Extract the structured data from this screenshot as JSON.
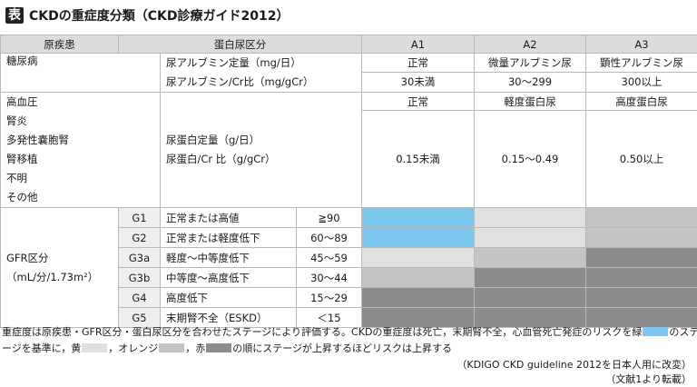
{
  "title": {
    "badge": "表",
    "text": "CKDの重症度分類（CKD診療ガイド2012）"
  },
  "colors": {
    "header_bg": "#dcdcdc",
    "grade_bg": "#eeeeee",
    "green": "#7ec8f0",
    "yellow": "#e0e0e0",
    "orange": "#c4c4c4",
    "red": "#8c8c8c"
  },
  "table": {
    "header": {
      "cause": "原疾患",
      "proteinuria_class": "蛋白尿区分",
      "a1": "A1",
      "a2": "A2",
      "a3": "A3"
    },
    "diabetes": {
      "label": "糖尿病",
      "measure_line1": "尿アルブミン定量（mg/日）",
      "measure_line2": "尿アルブミン/Cr比（mg/gCr）",
      "a1_name": "正常",
      "a2_name": "微量アルブミン尿",
      "a3_name": "顕性アルブミン尿",
      "a1_range": "30未満",
      "a2_range": "30～299",
      "a3_range": "300以上"
    },
    "other": {
      "labels": [
        "高血圧",
        "腎炎",
        "多発性嚢胞腎",
        "腎移植",
        "不明",
        "その他"
      ],
      "measure_line1": "尿蛋白定量（g/日）",
      "measure_line2": "尿蛋白/Cr 比（g/gCr）",
      "a1_name": "正常",
      "a2_name": "軽度蛋白尿",
      "a3_name": "高度蛋白尿",
      "a1_range": "0.15未満",
      "a2_range": "0.15～0.49",
      "a3_range": "0.50以上"
    },
    "gfr": {
      "label_line1": "GFR区分",
      "label_line2": "（mL/分/1.73m²）",
      "grades": [
        {
          "grade": "G1",
          "desc": "正常または高値",
          "range": "≧90",
          "risk": [
            "green",
            "yellow",
            "orange"
          ]
        },
        {
          "grade": "G2",
          "desc": "正常または軽度低下",
          "range": "60～89",
          "risk": [
            "green",
            "yellow",
            "orange"
          ]
        },
        {
          "grade": "G3a",
          "desc": "軽度～中等度低下",
          "range": "45～59",
          "risk": [
            "yellow",
            "orange",
            "red"
          ]
        },
        {
          "grade": "G3b",
          "desc": "中等度～高度低下",
          "range": "30～44",
          "risk": [
            "orange",
            "red",
            "red"
          ]
        },
        {
          "grade": "G4",
          "desc": "高度低下",
          "range": "15～29",
          "risk": [
            "red",
            "red",
            "red"
          ]
        },
        {
          "grade": "G5",
          "desc": "末期腎不全（ESKD）",
          "range": "＜15",
          "risk": [
            "red",
            "red",
            "red"
          ]
        }
      ]
    }
  },
  "caption": {
    "part1": "重症度は原疾患・GFR区分・蛋白尿区分を合わせたステージにより評価する。CKDの重症度は死亡，末期腎不全，心血管死亡発症のリスクを緑",
    "part2": "のステ",
    "part3": "ージを基準に，黄",
    "part4": "，オレンジ",
    "part5": "，赤",
    "part6": "の順にステージが上昇するほどリスクは上昇する"
  },
  "source": {
    "line1": "（KDIGO CKD guideline 2012を日本人用に改変）",
    "line2": "（文献1より転載）"
  }
}
